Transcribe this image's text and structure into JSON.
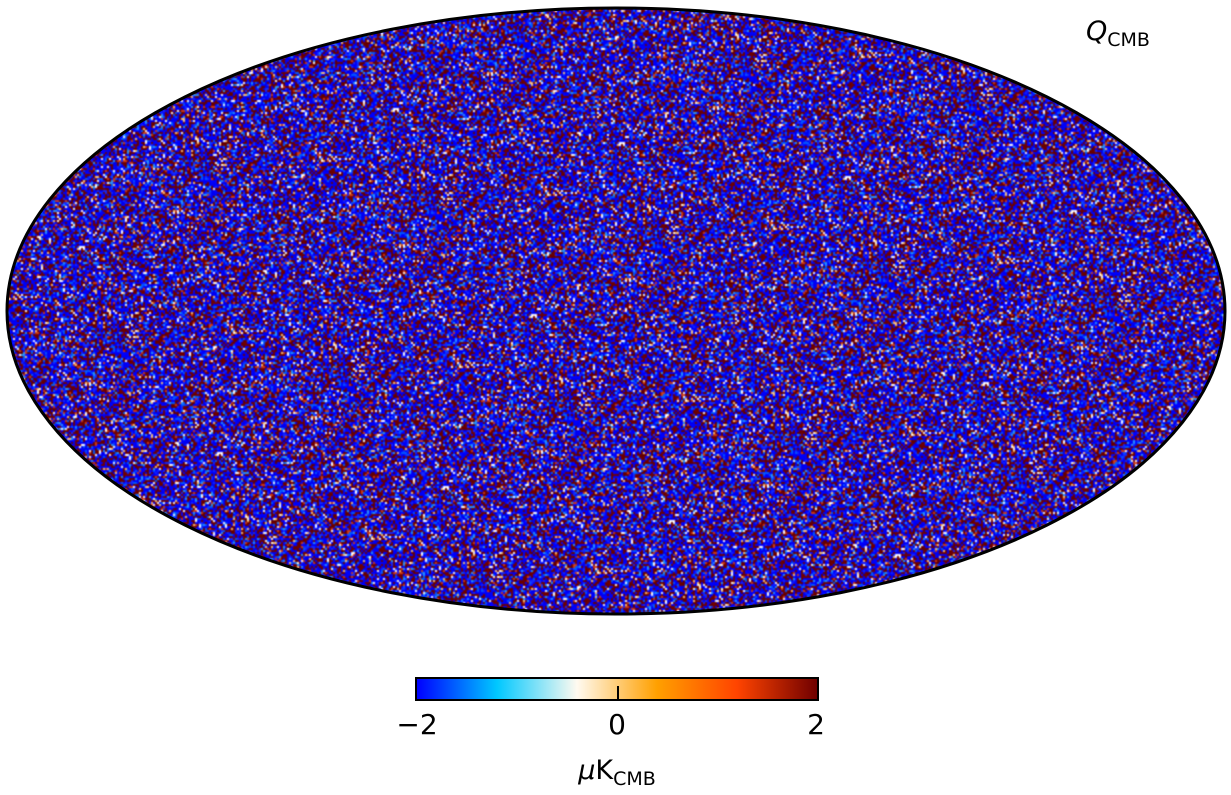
{
  "map": {
    "projection": "Mollweide",
    "title_symbol": "Q",
    "title_subscript": "CMB",
    "colormap": [
      "#0000ff",
      "#00c8ff",
      "#fffaf0",
      "#ffa000",
      "#ff4400",
      "#700000"
    ],
    "colorbar": {
      "min": -2,
      "max": 2,
      "tick_labels": [
        "−2",
        "0",
        "2"
      ],
      "unit_symbol": "μ",
      "unit_base": "K",
      "unit_subscript": "CMB"
    }
  }
}
